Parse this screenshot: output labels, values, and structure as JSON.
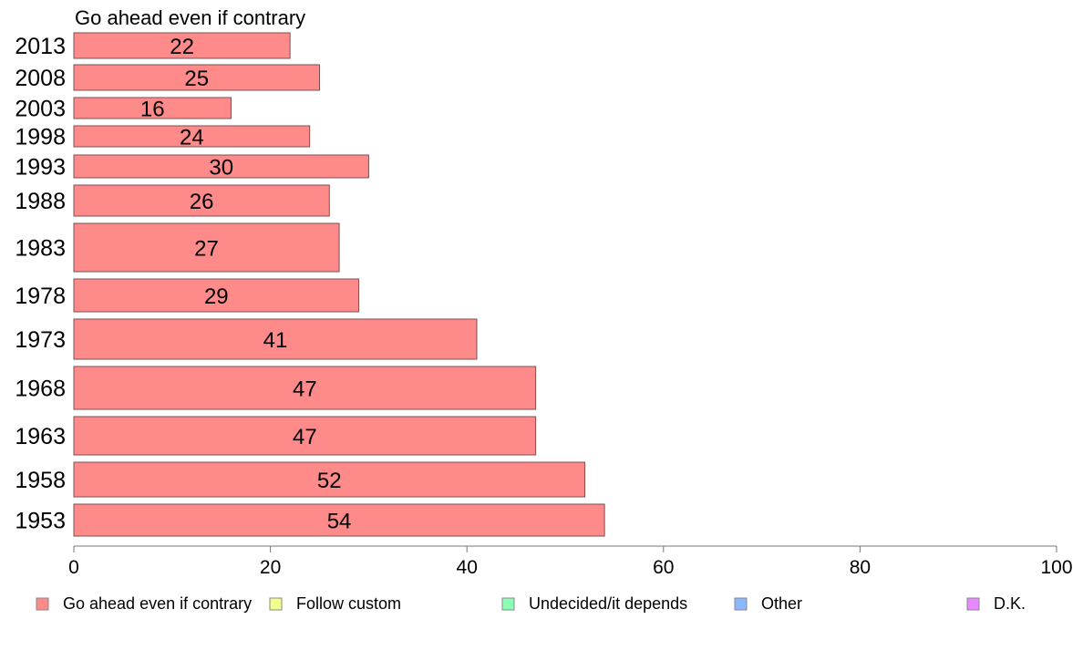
{
  "chart_data": {
    "type": "bar",
    "orientation": "horizontal",
    "title": "Go ahead even if contrary",
    "categories": [
      "2013",
      "2008",
      "2003",
      "1998",
      "1993",
      "1988",
      "1983",
      "1978",
      "1973",
      "1968",
      "1963",
      "1958",
      "1953"
    ],
    "values": [
      22,
      25,
      16,
      24,
      30,
      26,
      27,
      29,
      41,
      47,
      47,
      52,
      54
    ],
    "xlim": [
      0,
      100
    ],
    "xticks": [
      0,
      20,
      40,
      60,
      80,
      100
    ],
    "bar_color": "#ff8a8a",
    "grid": false,
    "legend_position": "bottom",
    "legend": [
      {
        "label": "Go ahead even if contrary",
        "color": "#ff8a8a"
      },
      {
        "label": "Follow custom",
        "color": "#f2ff8a"
      },
      {
        "label": "Undecided/it depends",
        "color": "#8affb4"
      },
      {
        "label": "Other",
        "color": "#8ab8ff"
      },
      {
        "label": "D.K.",
        "color": "#e88aff"
      }
    ]
  }
}
